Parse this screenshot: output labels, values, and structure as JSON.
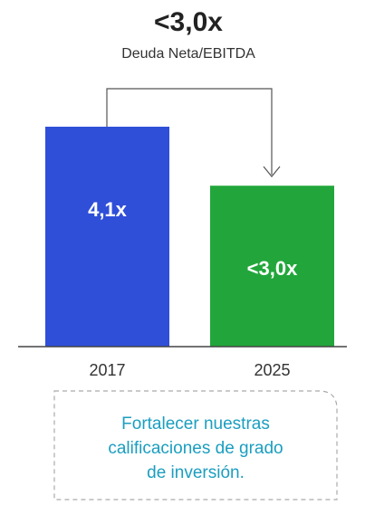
{
  "chart_data": {
    "type": "bar",
    "title": "<3,0x",
    "subtitle": "Deuda Neta/EBITDA",
    "categories": [
      "2017",
      "2025"
    ],
    "values": [
      4.1,
      3.0
    ],
    "value_labels": [
      "4,1x",
      "<3,0x"
    ],
    "colors": [
      "#2f4fd9",
      "#22a63b"
    ],
    "note": [
      "Fortalecer nuestras",
      "calificaciones de grado",
      "de inversión."
    ]
  }
}
